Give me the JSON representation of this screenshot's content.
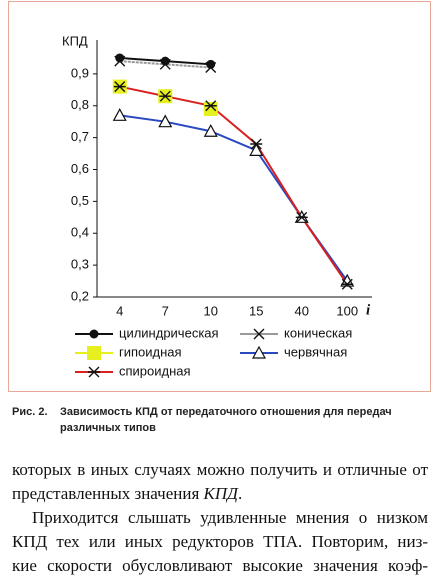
{
  "chart_data": {
    "type": "line",
    "ylabel": "КПД",
    "xlabel": "i",
    "categories": [
      "4",
      "7",
      "10",
      "15",
      "40",
      "100"
    ],
    "ylim": [
      0.2,
      1.0
    ],
    "yticks": [
      {
        "value": 0.2,
        "label": "0,2"
      },
      {
        "value": 0.3,
        "label": "0,3"
      },
      {
        "value": 0.4,
        "label": "0,4"
      },
      {
        "value": 0.5,
        "label": "0,5"
      },
      {
        "value": 0.6,
        "label": "0,6"
      },
      {
        "value": 0.7,
        "label": "0,7"
      },
      {
        "value": 0.8,
        "label": "0,8"
      },
      {
        "value": 0.9,
        "label": "0,9"
      }
    ],
    "series": [
      {
        "name": "цилиндрическая",
        "color": "#111111",
        "marker": "circle",
        "values": [
          0.95,
          0.94,
          0.93,
          null,
          null,
          null
        ]
      },
      {
        "name": "коническая",
        "color": "#9a9a9a",
        "marker": "cross",
        "values": [
          0.94,
          0.93,
          0.92,
          null,
          null,
          null
        ]
      },
      {
        "name": "гипоидная",
        "color": "#e6f01e",
        "marker": "square",
        "values": [
          0.86,
          0.83,
          0.79,
          null,
          null,
          null
        ]
      },
      {
        "name": "червячная",
        "color": "#2a48c0",
        "marker": "triangle",
        "values": [
          0.77,
          0.75,
          0.72,
          0.66,
          0.45,
          0.25
        ]
      },
      {
        "name": "спироидная",
        "color": "#d82020",
        "marker": "asterisk",
        "values": [
          0.86,
          0.83,
          0.8,
          0.68,
          0.45,
          0.24
        ]
      }
    ]
  },
  "caption": {
    "label": "Рис. 2.",
    "text": "Зависимость КПД от передаточного отношения для передач различных типов"
  },
  "body": {
    "lines": [
      "которых в иных случаях можно получить и отличные от",
      "представленных значения ",
      "КПД",
      ".",
      "Приходится слышать удивленные мнения о низком",
      "КПД тех или иных редукторов ТПА. Повторим, низ-",
      "кие скорости обусловливают высокие значения коэф-"
    ]
  }
}
